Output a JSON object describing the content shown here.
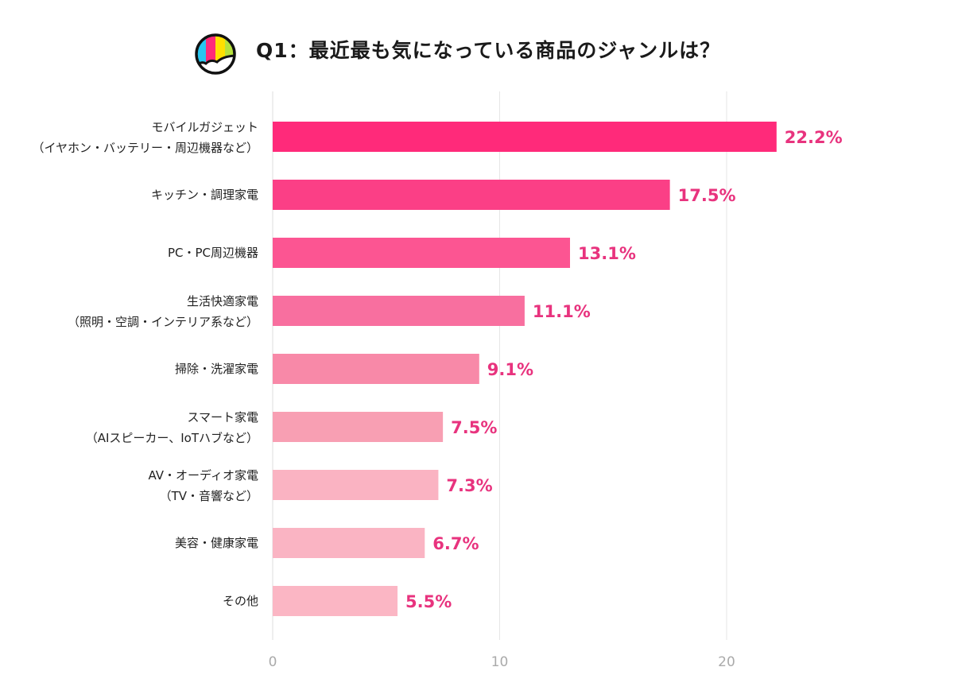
{
  "chart_data": {
    "type": "bar",
    "orientation": "horizontal",
    "title": "Q1：最近最も気になっている商品のジャンルは？",
    "categories": [
      [
        "モバイルガジェット",
        "（イヤホン・バッテリー・周辺機器など）"
      ],
      [
        "キッチン・調理家電"
      ],
      [
        "PC・PC周辺機器"
      ],
      [
        "生活快適家電",
        "（照明・空調・インテリア系など）"
      ],
      [
        "掃除・洗濯家電"
      ],
      [
        "スマート家電",
        "（AIスピーカー、IoTハブなど）"
      ],
      [
        "AV・オーディオ家電",
        "（TV・音響など）"
      ],
      [
        "美容・健康家電"
      ],
      [
        "その他"
      ]
    ],
    "values": [
      22.2,
      17.5,
      13.1,
      11.1,
      9.1,
      7.5,
      7.3,
      6.7,
      5.5
    ],
    "value_labels": [
      "22.2%",
      "17.5%",
      "13.1%",
      "11.1%",
      "9.1%",
      "7.5%",
      "7.3%",
      "6.7%",
      "5.5%"
    ],
    "colors": [
      "#ff2a7a",
      "#fb3f86",
      "#fc5592",
      "#f86f9f",
      "#f889a8",
      "#f89fb3",
      "#fab3c2",
      "#fab4c3",
      "#fbb6c4"
    ],
    "xlim": [
      0,
      25
    ],
    "xticks": [
      0,
      10,
      20
    ],
    "xtick_labels": [
      "0",
      "10",
      "20"
    ],
    "grid": true,
    "xlabel": "",
    "ylabel": ""
  },
  "logo": {
    "colors": [
      "#29c6f0",
      "#ff2a7a",
      "#ffe000",
      "#b6e23c"
    ]
  }
}
